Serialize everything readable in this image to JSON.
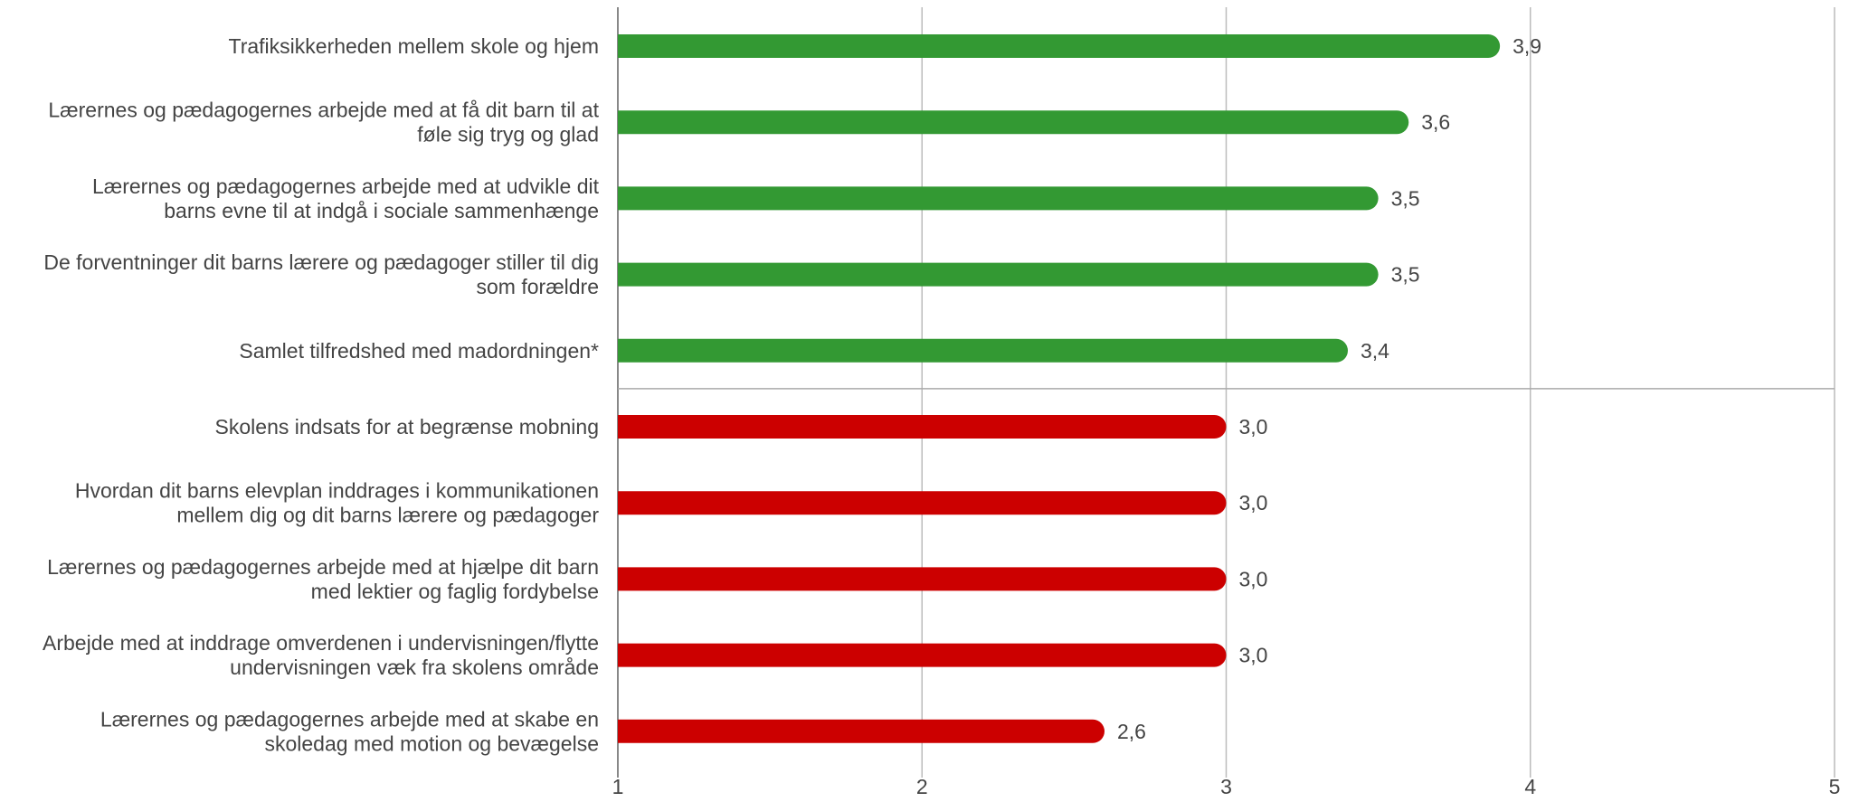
{
  "chart_data": {
    "type": "bar",
    "orientation": "horizontal",
    "title": "",
    "xlabel": "",
    "ylabel": "",
    "xlim": [
      1,
      5
    ],
    "x_ticks": [
      1,
      2,
      3,
      4,
      5
    ],
    "grid": true,
    "reference_line": 2.75,
    "categories": [
      [
        "Trafiksikkerheden mellem skole og hjem"
      ],
      [
        "Lærernes og pædagogernes arbejde med at få dit barn til at",
        "føle sig tryg og glad"
      ],
      [
        "Lærernes og pædagogernes arbejde med at udvikle dit",
        "barns evne til at indgå i sociale sammenhænge"
      ],
      [
        "De forventninger dit barns lærere og pædagoger stiller til dig",
        "som forældre"
      ],
      [
        "Samlet tilfredshed med madordningen*"
      ],
      [
        "Skolens indsats for at begrænse mobning"
      ],
      [
        "Hvordan dit barns elevplan inddrages i kommunikationen",
        "mellem dig og dit barns lærere og pædagoger"
      ],
      [
        "Lærernes og pædagogernes arbejde med at hjælpe dit barn",
        "med lektier og faglig fordybelse"
      ],
      [
        "Arbejde med at inddrage omverdenen i undervisningen/flytte",
        "undervisningen væk fra skolens område"
      ],
      [
        "Lærernes og pædagogernes arbejde med at skabe en",
        "skoledag med motion og bevægelse"
      ]
    ],
    "values": [
      3.9,
      3.6,
      3.5,
      3.5,
      3.4,
      3.0,
      3.0,
      3.0,
      3.0,
      2.6
    ],
    "value_labels": [
      "3,9",
      "3,6",
      "3,5",
      "3,5",
      "3,4",
      "3,0",
      "3,0",
      "3,0",
      "3,0",
      "2,6"
    ],
    "bar_colors": [
      "#339933",
      "#339933",
      "#339933",
      "#339933",
      "#339933",
      "#cc0000",
      "#cc0000",
      "#cc0000",
      "#cc0000",
      "#cc0000"
    ]
  }
}
